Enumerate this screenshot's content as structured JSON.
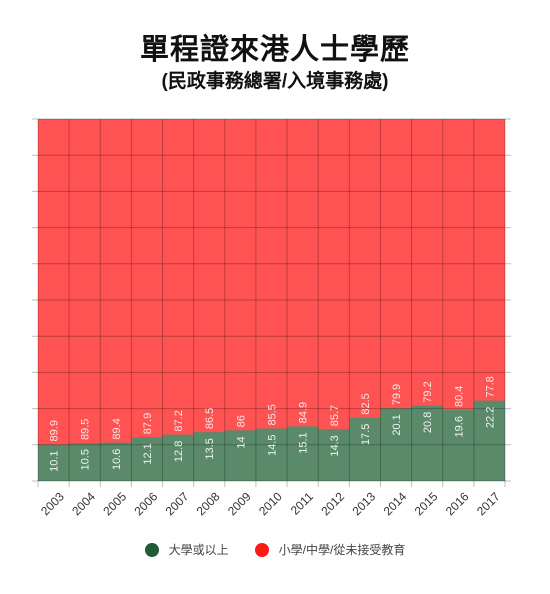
{
  "chart_data": {
    "type": "area",
    "stacked": true,
    "stacked_percent": true,
    "title": "單程證來港人士學歷",
    "subtitle": "(民政事務總署/入境事務處)",
    "categories": [
      "2003",
      "2004",
      "2005",
      "2006",
      "2007",
      "2008",
      "2009",
      "2010",
      "2011",
      "2012",
      "2013",
      "2014",
      "2015",
      "2016",
      "2017"
    ],
    "series": [
      {
        "name": "大學或以上",
        "color": "#5a8a6a",
        "legend_color": "#1f5c36",
        "values": [
          10.1,
          10.5,
          10.6,
          12.1,
          12.8,
          13.5,
          14,
          14.5,
          15.1,
          14.3,
          17.5,
          20.1,
          20.8,
          19.6,
          22.2
        ]
      },
      {
        "name": "小學/中學/從未接受教育",
        "color": "#ff5252",
        "legend_color": "#ff1a1a",
        "values": [
          89.9,
          89.5,
          89.4,
          87.9,
          87.2,
          86.5,
          86,
          85.5,
          84.9,
          85.7,
          82.5,
          79.9,
          79.2,
          80.4,
          77.8
        ]
      }
    ],
    "ylim": [
      0,
      100
    ],
    "grid": true,
    "legend_position": "bottom",
    "data_labels": true
  }
}
